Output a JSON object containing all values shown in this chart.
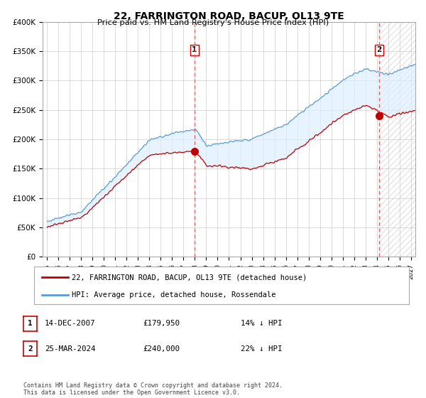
{
  "title": "22, FARRINGTON ROAD, BACUP, OL13 9TE",
  "subtitle": "Price paid vs. HM Land Registry's House Price Index (HPI)",
  "legend_line1": "22, FARRINGTON ROAD, BACUP, OL13 9TE (detached house)",
  "legend_line2": "HPI: Average price, detached house, Rossendale",
  "annotation1_date": "14-DEC-2007",
  "annotation1_price": "£179,950",
  "annotation1_hpi": "14% ↓ HPI",
  "annotation2_date": "25-MAR-2024",
  "annotation2_price": "£240,000",
  "annotation2_hpi": "22% ↓ HPI",
  "footer": "Contains HM Land Registry data © Crown copyright and database right 2024.\nThis data is licensed under the Open Government Licence v3.0.",
  "hpi_color": "#5b9bd5",
  "price_color": "#c00000",
  "vline_color": "#e06060",
  "fill_color": "#ddeeff",
  "grid_color": "#cccccc",
  "bg_color": "#ffffff",
  "ylim": [
    0,
    400000
  ],
  "yticks": [
    0,
    50000,
    100000,
    150000,
    200000,
    250000,
    300000,
    350000,
    400000
  ],
  "ytick_labels": [
    "£0",
    "£50K",
    "£100K",
    "£150K",
    "£200K",
    "£250K",
    "£300K",
    "£350K",
    "£400K"
  ],
  "sale1_year": 2007.958,
  "sale1_price": 179950,
  "sale2_year": 2024.208,
  "sale2_price": 240000
}
